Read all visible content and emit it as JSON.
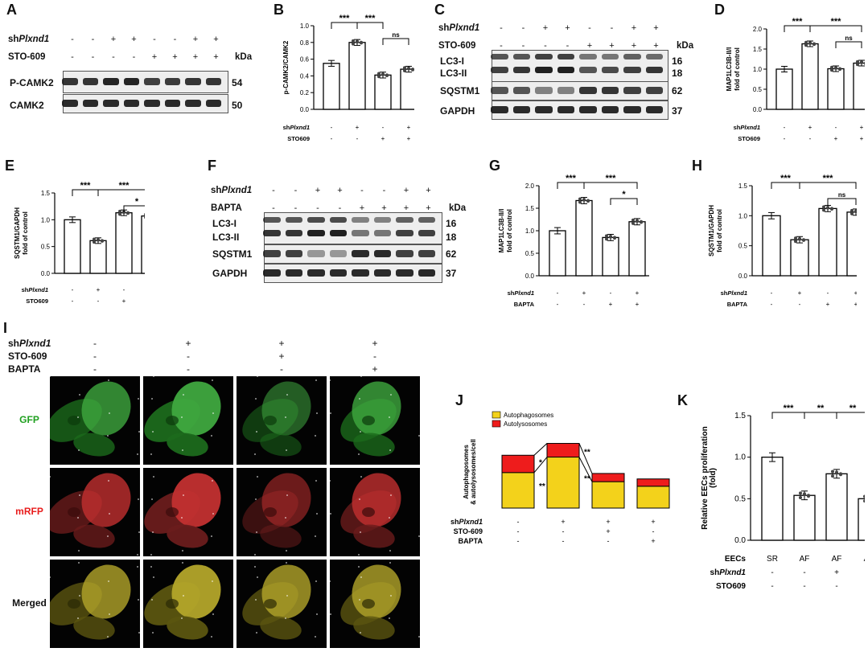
{
  "panel_letters": [
    "A",
    "B",
    "C",
    "D",
    "E",
    "F",
    "G",
    "H",
    "I",
    "J",
    "K"
  ],
  "blots": {
    "A": {
      "cond_rows": [
        {
          "label_prefix": "sh",
          "label_italic": "Plxnd1",
          "signs": [
            "-",
            "-",
            "+",
            "+",
            "-",
            "-",
            "+",
            "+"
          ]
        },
        {
          "label_prefix": "",
          "label_italic": "",
          "label_plain": "STO-609",
          "signs": [
            "-",
            "-",
            "-",
            "-",
            "+",
            "+",
            "+",
            "+"
          ]
        }
      ],
      "kda_label": "kDa",
      "rows": [
        {
          "name": "P-CAMK2",
          "kda": "54"
        },
        {
          "name": "CAMK2",
          "kda": "50"
        }
      ]
    },
    "C": {
      "cond_rows": [
        {
          "label_prefix": "sh",
          "label_italic": "Plxnd1",
          "signs": [
            "-",
            "-",
            "+",
            "+",
            "-",
            "-",
            "+",
            "+"
          ]
        },
        {
          "label_prefix": "",
          "label_italic": "",
          "label_plain": "STO-609",
          "signs": [
            "-",
            "-",
            "-",
            "-",
            "+",
            "+",
            "+",
            "+"
          ]
        }
      ],
      "kda_label": "kDa",
      "rows": [
        {
          "name": "LC3-I",
          "kda": "16"
        },
        {
          "name": "LC3-II",
          "kda": "18"
        },
        {
          "name": "SQSTM1",
          "kda": "62"
        },
        {
          "name": "GAPDH",
          "kda": "37"
        }
      ]
    },
    "F": {
      "cond_rows": [
        {
          "label_prefix": "sh",
          "label_italic": "Plxnd1",
          "signs": [
            "-",
            "-",
            "+",
            "+",
            "-",
            "-",
            "+",
            "+"
          ]
        },
        {
          "label_prefix": "",
          "label_italic": "",
          "label_plain": "BAPTA",
          "signs": [
            "-",
            "-",
            "-",
            "-",
            "+",
            "+",
            "+",
            "+"
          ]
        }
      ],
      "kda_label": "kDa",
      "rows": [
        {
          "name": "LC3-I",
          "kda": "16"
        },
        {
          "name": "LC3-II",
          "kda": "18"
        },
        {
          "name": "SQSTM1",
          "kda": "62"
        },
        {
          "name": "GAPDH",
          "kda": "37"
        }
      ]
    }
  },
  "chart_data": [
    {
      "panel": "B",
      "type": "bar",
      "ylabel": "p-CAMK2/CAMK2",
      "ylim": [
        0,
        1.0
      ],
      "yticks": [
        "0.0",
        "0.2",
        "0.4",
        "0.6",
        "0.8",
        "1.0"
      ],
      "values": [
        0.55,
        0.8,
        0.41,
        0.48
      ],
      "cond_rows": [
        {
          "label_prefix": "sh",
          "label_italic": "Plxnd1",
          "signs": [
            "-",
            "+",
            "-",
            "+"
          ]
        },
        {
          "label_plain": "STO609",
          "signs": [
            "-",
            "-",
            "+",
            "+"
          ]
        }
      ],
      "sig": [
        {
          "from": 0,
          "to": 1,
          "text": "***",
          "level": 0
        },
        {
          "from": 1,
          "to": 2,
          "text": "***",
          "level": 0
        },
        {
          "from": 2,
          "to": 3,
          "text": "ns",
          "level": 1
        }
      ]
    },
    {
      "panel": "D",
      "type": "bar",
      "ylabel": "MAP1LC3B-II/I fold of control",
      "ylim": [
        0,
        2.0
      ],
      "yticks": [
        "0.0",
        "0.5",
        "1.0",
        "1.5",
        "2.0"
      ],
      "values": [
        1.0,
        1.63,
        1.01,
        1.15
      ],
      "cond_rows": [
        {
          "label_prefix": "sh",
          "label_italic": "Plxnd1",
          "signs": [
            "-",
            "+",
            "-",
            "+"
          ]
        },
        {
          "label_plain": "STO609",
          "signs": [
            "-",
            "-",
            "+",
            "+"
          ]
        }
      ],
      "sig": [
        {
          "from": 0,
          "to": 1,
          "text": "***",
          "level": 0
        },
        {
          "from": 1,
          "to": 3,
          "text": "***",
          "level": 0
        },
        {
          "from": 2,
          "to": 3,
          "text": "ns",
          "level": 1
        }
      ]
    },
    {
      "panel": "E",
      "type": "bar",
      "ylabel": "SQSTM1/GAPDH fold of control",
      "ylim": [
        0,
        1.5
      ],
      "yticks": [
        "0.0",
        "0.5",
        "1.0",
        "1.5"
      ],
      "values": [
        1.0,
        0.61,
        1.13,
        1.07
      ],
      "cond_rows": [
        {
          "label_prefix": "sh",
          "label_italic": "Plxnd1",
          "signs": [
            "-",
            "+",
            "-",
            "+"
          ]
        },
        {
          "label_plain": "STO609",
          "signs": [
            "-",
            "-",
            "+",
            "+"
          ]
        }
      ],
      "sig": [
        {
          "from": 0,
          "to": 1,
          "text": "***",
          "level": 0
        },
        {
          "from": 1,
          "to": 3,
          "text": "***",
          "level": 0
        },
        {
          "from": 2,
          "to": 3,
          "text": "*",
          "level": 1
        }
      ]
    },
    {
      "panel": "G",
      "type": "bar",
      "ylabel": "MAP1LC3B-II/I fold of control",
      "ylim": [
        0,
        2.0
      ],
      "yticks": [
        "0.0",
        "0.5",
        "1.0",
        "1.5",
        "2.0"
      ],
      "values": [
        1.0,
        1.67,
        0.85,
        1.2
      ],
      "cond_rows": [
        {
          "label_prefix": "sh",
          "label_italic": "Plxnd1",
          "signs": [
            "-",
            "+",
            "-",
            "+"
          ]
        },
        {
          "label_plain": "BAPTA",
          "signs": [
            "-",
            "-",
            "+",
            "+"
          ]
        }
      ],
      "sig": [
        {
          "from": 0,
          "to": 1,
          "text": "***",
          "level": 0
        },
        {
          "from": 1,
          "to": 3,
          "text": "***",
          "level": 0
        },
        {
          "from": 2,
          "to": 3,
          "text": "*",
          "level": 1
        }
      ]
    },
    {
      "panel": "H",
      "type": "bar",
      "ylabel": "SQSTM1/GAPDH fold of control",
      "ylim": [
        0,
        1.5
      ],
      "yticks": [
        "0.0",
        "0.5",
        "1.0",
        "1.5"
      ],
      "values": [
        1.0,
        0.6,
        1.12,
        1.06
      ],
      "cond_rows": [
        {
          "label_prefix": "sh",
          "label_italic": "Plxnd1",
          "signs": [
            "-",
            "+",
            "-",
            "+"
          ]
        },
        {
          "label_plain": "BAPTA",
          "signs": [
            "-",
            "-",
            "+",
            "+"
          ]
        }
      ],
      "sig": [
        {
          "from": 0,
          "to": 1,
          "text": "***",
          "level": 0
        },
        {
          "from": 1,
          "to": 3,
          "text": "***",
          "level": 0
        },
        {
          "from": 2,
          "to": 3,
          "text": "ns",
          "level": 1
        }
      ]
    },
    {
      "panel": "J",
      "type": "bar",
      "stacked": true,
      "ylabel": "Autophagosomes & autolysosomes/cell",
      "legend": [
        {
          "name": "Autophagosomes",
          "color": "#f3d21b"
        },
        {
          "name": "Autolysosomes",
          "color": "#ee1c1c"
        }
      ],
      "series": [
        {
          "name": "Autophagosomes",
          "values": [
            39,
            56,
            29,
            24
          ]
        },
        {
          "name": "Autolysosomes",
          "values": [
            19,
            15,
            9,
            8
          ]
        }
      ],
      "ylim": [
        0,
        75
      ],
      "cond_rows": [
        {
          "label_prefix": "sh",
          "label_italic": "Plxnd1",
          "signs": [
            "-",
            "+",
            "+",
            "+"
          ]
        },
        {
          "label_plain": "STO-609",
          "signs": [
            "-",
            "-",
            "+",
            "-"
          ]
        },
        {
          "label_plain": "BAPTA",
          "signs": [
            "-",
            "-",
            "-",
            "+"
          ]
        }
      ],
      "annotations": [
        "*",
        "**",
        "**",
        "**"
      ]
    },
    {
      "panel": "K",
      "type": "bar",
      "ylabel": "Relative EECs proliferation (fold)",
      "ylim": [
        0,
        1.5
      ],
      "yticks": [
        "0.0",
        "0.5",
        "1.0",
        "1.5"
      ],
      "values": [
        1.0,
        0.54,
        0.8,
        0.5
      ],
      "cond_rows": [
        {
          "label_plain": "EECs",
          "signs": [
            "SR",
            "AF",
            "AF",
            "AF"
          ]
        },
        {
          "label_prefix": "sh",
          "label_italic": "Plxnd1",
          "signs": [
            "-",
            "-",
            "+",
            "+"
          ]
        },
        {
          "label_plain": "STO609",
          "signs": [
            "-",
            "-",
            "-",
            "+"
          ]
        }
      ],
      "sig": [
        {
          "from": 0,
          "to": 1,
          "text": "***",
          "level": 0
        },
        {
          "from": 1,
          "to": 2,
          "text": "**",
          "level": 0
        },
        {
          "from": 2,
          "to": 3,
          "text": "**",
          "level": 0
        }
      ]
    }
  ],
  "microscopy": {
    "cond_rows": [
      {
        "label_prefix": "sh",
        "label_italic": "Plxnd1",
        "signs": [
          "-",
          "+",
          "+",
          "+"
        ]
      },
      {
        "label_plain": "STO-609",
        "signs": [
          "-",
          "-",
          "+",
          "-"
        ]
      },
      {
        "label_plain": "BAPTA",
        "signs": [
          "-",
          "-",
          "-",
          "+"
        ]
      }
    ],
    "rows": [
      {
        "name": "GFP",
        "color": "#1fa01f"
      },
      {
        "name": "mRFP",
        "color": "#e81c1c"
      },
      {
        "name": "Merged",
        "color": "#111111"
      }
    ]
  }
}
